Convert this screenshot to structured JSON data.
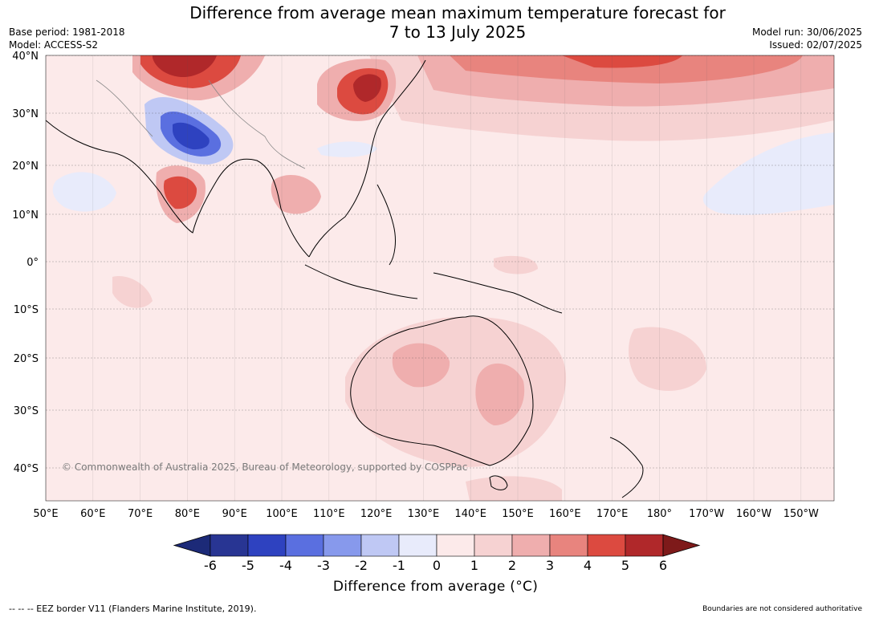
{
  "title": {
    "line1": "Difference from average mean maximum temperature forecast for",
    "line2": "7 to 13 July 2025"
  },
  "meta": {
    "base_period": "Base period: 1981-2018",
    "model": "Model: ACCESS-S2",
    "model_run": "Model run: 30/06/2025",
    "issued": "Issued: 02/07/2025"
  },
  "map": {
    "latitude_labels": [
      "40°N",
      "30°N",
      "20°N",
      "10°N",
      "0°",
      "10°S",
      "20°S",
      "30°S",
      "40°S"
    ],
    "longitude_labels": [
      "50°E",
      "60°E",
      "70°E",
      "80°E",
      "90°E",
      "100°E",
      "110°E",
      "120°E",
      "130°E",
      "140°E",
      "150°E",
      "160°E",
      "170°E",
      "180°",
      "170°W",
      "160°W",
      "150°W"
    ],
    "copyright": "© Commonwealth of Australia 2025, Bureau of Meteorology, supported by COSPPac"
  },
  "colorbar": {
    "tick_labels": [
      "-6",
      "-5",
      "-4",
      "-3",
      "-2",
      "-1",
      "0",
      "1",
      "2",
      "3",
      "4",
      "5",
      "6"
    ],
    "colors": [
      "#283593",
      "#2e42c0",
      "#5a6fe0",
      "#8799ec",
      "#bfc8f4",
      "#e8ebfb",
      "#fceaea",
      "#f6d2d2",
      "#efaeae",
      "#e8847e",
      "#dc4a40",
      "#b0282a"
    ],
    "low_extend_color": "#1c2a78",
    "high_extend_color": "#7e1a1a",
    "label": "Difference from average (°C)"
  },
  "footer": {
    "eez_note": "--  --  -- EEZ border V11 (Flanders Marine Institute, 2019).",
    "boundaries_note": "Boundaries are not considered authoritative"
  }
}
